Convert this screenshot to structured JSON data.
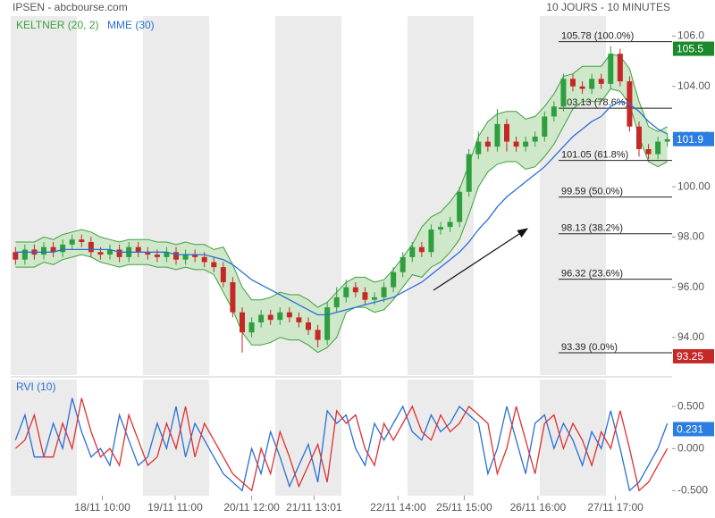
{
  "chart_data": [
    {
      "type": "candlestick",
      "title": "IPSEN - abcbourse.com",
      "subtitle": "10 JOURS - 10 MINUTES",
      "xlim": [
        0,
        70
      ],
      "ylim": [
        92.5,
        106.8
      ],
      "yticks": [
        {
          "value": 94,
          "label": "94.00"
        },
        {
          "value": 96,
          "label": "96.00"
        },
        {
          "value": 98,
          "label": "98.00"
        },
        {
          "value": 100,
          "label": "100.00"
        },
        {
          "value": 102,
          "label": "102.00"
        },
        {
          "value": 104,
          "label": "104.00"
        },
        {
          "value": 106,
          "label": "106.0"
        }
      ],
      "up_color": "#2e9e3e",
      "down_color": "#c62828",
      "open": [
        97.4,
        97.1,
        97.5,
        97.3,
        97.6,
        97.4,
        97.7,
        97.9,
        97.8,
        97.4,
        97.3,
        97.5,
        97.2,
        97.6,
        97.4,
        97.3,
        97.2,
        97.4,
        97.1,
        97.3,
        97.2,
        97.0,
        96.8,
        96.2,
        95.0,
        94.2,
        94.6,
        94.9,
        94.7,
        95.0,
        94.8,
        94.6,
        94.3,
        93.9,
        95.2,
        95.6,
        96.0,
        95.8,
        95.5,
        95.6,
        96.0,
        96.6,
        97.2,
        97.6,
        97.4,
        98.3,
        98.4,
        98.6,
        99.8,
        101.3,
        101.8,
        101.6,
        102.5,
        101.8,
        101.6,
        101.8,
        102.0,
        102.8,
        103.2,
        104.3,
        104.0,
        103.9,
        104.3,
        104.1,
        105.3,
        104.2,
        102.4,
        101.5,
        101.3,
        101.8
      ],
      "high": [
        97.6,
        97.7,
        97.7,
        97.8,
        97.8,
        97.9,
        98.1,
        98.1,
        98.0,
        97.6,
        97.7,
        97.7,
        97.8,
        97.8,
        97.6,
        97.5,
        97.6,
        97.6,
        97.5,
        97.5,
        97.4,
        97.2,
        97.0,
        96.4,
        95.2,
        94.8,
        95.1,
        95.1,
        95.2,
        95.2,
        95.0,
        94.8,
        94.5,
        95.4,
        96.0,
        96.3,
        96.2,
        96.0,
        95.8,
        96.2,
        96.8,
        97.4,
        97.8,
        97.8,
        98.5,
        98.6,
        98.8,
        100.0,
        101.5,
        102.2,
        102.0,
        103.1,
        102.7,
        102.0,
        102.0,
        102.2,
        103.0,
        103.4,
        104.5,
        104.5,
        104.2,
        104.5,
        104.5,
        105.6,
        105.5,
        104.4,
        102.6,
        101.7,
        102.0,
        102.1
      ],
      "low": [
        96.9,
        96.9,
        97.1,
        97.1,
        97.2,
        97.2,
        97.5,
        97.6,
        97.2,
        97.1,
        97.1,
        97.0,
        97.0,
        97.2,
        97.1,
        97.0,
        97.0,
        96.9,
        96.9,
        97.0,
        96.8,
        96.6,
        96.0,
        94.8,
        93.4,
        94.0,
        94.4,
        94.5,
        94.5,
        94.6,
        94.4,
        94.1,
        93.6,
        93.7,
        95.0,
        95.4,
        95.6,
        95.3,
        95.3,
        95.4,
        95.8,
        96.4,
        97.0,
        97.2,
        97.2,
        98.1,
        98.2,
        98.4,
        99.6,
        101.1,
        101.4,
        101.4,
        101.4,
        101.4,
        101.4,
        101.6,
        101.8,
        102.6,
        103.0,
        103.8,
        103.7,
        103.7,
        103.9,
        103.9,
        104.0,
        102.2,
        101.2,
        101.1,
        101.1,
        101.6
      ],
      "close": [
        97.1,
        97.5,
        97.3,
        97.6,
        97.4,
        97.7,
        97.9,
        97.8,
        97.4,
        97.3,
        97.5,
        97.2,
        97.6,
        97.4,
        97.3,
        97.2,
        97.4,
        97.1,
        97.3,
        97.2,
        97.0,
        96.8,
        96.2,
        95.0,
        94.2,
        94.6,
        94.9,
        94.7,
        95.0,
        94.8,
        94.6,
        94.3,
        93.9,
        95.2,
        95.6,
        96.0,
        95.8,
        95.5,
        95.6,
        96.0,
        96.6,
        97.2,
        97.6,
        97.4,
        98.3,
        98.4,
        98.6,
        99.8,
        101.3,
        101.8,
        101.6,
        102.5,
        101.8,
        101.6,
        101.8,
        102.0,
        102.8,
        103.2,
        104.3,
        104.0,
        103.9,
        104.3,
        104.1,
        105.3,
        104.2,
        102.4,
        101.5,
        101.3,
        101.8,
        101.9
      ],
      "series": [
        {
          "name": "KELTNER (20, 2)",
          "color": "#3f9f3f",
          "fill": "#cfe8c9",
          "upper": [
            97.8,
            97.8,
            97.8,
            98.0,
            97.9,
            98.1,
            98.2,
            98.3,
            98.2,
            98.0,
            97.9,
            97.8,
            97.9,
            97.9,
            97.9,
            97.8,
            97.8,
            97.7,
            97.8,
            97.7,
            97.7,
            97.5,
            97.6,
            96.9,
            96.0,
            95.5,
            95.5,
            95.6,
            95.8,
            95.7,
            95.7,
            95.5,
            95.2,
            95.4,
            95.8,
            96.2,
            96.4,
            96.4,
            96.2,
            96.3,
            96.7,
            97.2,
            97.7,
            98.4,
            98.8,
            99.0,
            99.4,
            99.9,
            100.9,
            102.0,
            102.6,
            102.9,
            103.0,
            103.0,
            102.7,
            102.8,
            103.2,
            103.7,
            104.4,
            104.5,
            104.8,
            104.8,
            104.8,
            105.3,
            105.2,
            104.7,
            103.4,
            102.4,
            102.2,
            102.4
          ],
          "lower": [
            96.8,
            96.8,
            96.8,
            97.0,
            96.9,
            97.1,
            97.2,
            97.3,
            97.2,
            97.0,
            96.9,
            96.8,
            96.9,
            96.9,
            96.9,
            96.8,
            96.8,
            96.7,
            96.8,
            96.7,
            96.7,
            96.5,
            95.8,
            95.1,
            94.2,
            93.7,
            93.7,
            93.8,
            94.0,
            93.9,
            93.9,
            93.7,
            93.4,
            93.6,
            94.0,
            95.0,
            95.2,
            95.2,
            95.0,
            95.1,
            95.5,
            96.0,
            96.5,
            96.4,
            96.8,
            97.0,
            97.4,
            97.9,
            98.9,
            100.0,
            100.6,
            100.9,
            101.0,
            101.0,
            100.7,
            100.8,
            101.2,
            101.7,
            102.4,
            103.1,
            103.4,
            103.4,
            103.4,
            103.9,
            103.8,
            103.3,
            102.0,
            101.0,
            100.8,
            101.0
          ]
        },
        {
          "name": "MME (30)",
          "color": "#2a6fd6",
          "values": [
            97.4,
            97.4,
            97.4,
            97.4,
            97.4,
            97.5,
            97.5,
            97.5,
            97.5,
            97.5,
            97.5,
            97.4,
            97.4,
            97.4,
            97.4,
            97.4,
            97.4,
            97.3,
            97.3,
            97.3,
            97.3,
            97.2,
            97.1,
            96.9,
            96.6,
            96.3,
            96.1,
            95.9,
            95.7,
            95.5,
            95.3,
            95.1,
            94.9,
            94.9,
            95.0,
            95.1,
            95.2,
            95.3,
            95.4,
            95.5,
            95.6,
            95.8,
            96.0,
            96.2,
            96.5,
            96.8,
            97.1,
            97.4,
            97.8,
            98.3,
            98.7,
            99.2,
            99.6,
            99.9,
            100.2,
            100.5,
            100.8,
            101.2,
            101.6,
            102.0,
            102.3,
            102.6,
            102.8,
            103.2,
            103.4,
            103.3,
            103.0,
            102.6,
            102.3,
            102.1
          ]
        }
      ],
      "fib_levels": [
        {
          "value": 105.78,
          "label": "105.78 (100.0%)"
        },
        {
          "value": 103.13,
          "label": "103.13 (78.6%)"
        },
        {
          "value": 101.05,
          "label": "101.05 (61.8%)"
        },
        {
          "value": 99.59,
          "label": "99.59 (50.0%)"
        },
        {
          "value": 98.13,
          "label": "98.13 (38.2%)"
        },
        {
          "value": 96.32,
          "label": "96.32 (23.6%)"
        },
        {
          "value": 93.39,
          "label": "93.39 (0.0%)"
        }
      ],
      "price_tags": [
        {
          "value": 105.5,
          "color": "#1b8a2a"
        },
        {
          "value": 101.9,
          "color": "#2a7de1"
        },
        {
          "value": 93.25,
          "color": "#c62828"
        }
      ]
    },
    {
      "type": "line",
      "title": "RVI (10)",
      "xlim": [
        0,
        70
      ],
      "ylim": [
        -0.56,
        0.82
      ],
      "yticks": [
        {
          "value": -0.5,
          "label": "-0.500"
        },
        {
          "value": 0,
          "label": "0.000"
        },
        {
          "value": 0.5,
          "label": "0.500"
        }
      ],
      "xticks": [
        {
          "value": 9.7,
          "label": "18/11 10:00"
        },
        {
          "value": 17.4,
          "label": "19/11 11:00"
        },
        {
          "value": 25.5,
          "label": "20/11 12:00"
        },
        {
          "value": 32.1,
          "label": "21/11 13:01"
        },
        {
          "value": 41,
          "label": "22/11 14:00"
        },
        {
          "value": 48,
          "label": "25/11 15:00"
        },
        {
          "value": 55.8,
          "label": "26/11 16:00"
        },
        {
          "value": 64,
          "label": "27/11 17:00"
        }
      ],
      "series": [
        {
          "color": "#2a6fd6",
          "values": [
            0.1,
            0.4,
            -0.1,
            -0.1,
            0.3,
            0.0,
            0.6,
            0.2,
            -0.1,
            0.0,
            -0.2,
            0.4,
            0.1,
            -0.2,
            -0.1,
            0.3,
            0.0,
            0.5,
            -0.1,
            0.3,
            0.1,
            -0.1,
            -0.3,
            -0.4,
            -0.5,
            0.0,
            -0.3,
            0.2,
            -0.1,
            -0.45,
            -0.2,
            0.05,
            -0.4,
            0.45,
            0.3,
            0.4,
            0.0,
            -0.2,
            0.3,
            0.1,
            0.3,
            0.5,
            0.2,
            0.1,
            0.4,
            0.2,
            0.3,
            0.5,
            0.4,
            0.3,
            -0.3,
            0.0,
            0.5,
            0.1,
            -0.3,
            0.3,
            0.4,
            0.0,
            0.3,
            0.1,
            -0.2,
            0.2,
            0.0,
            0.45,
            0.0,
            -0.5,
            -0.4,
            -0.2,
            0.0,
            0.3
          ]
        },
        {
          "color": "#e03030",
          "values": [
            0.0,
            0.1,
            0.4,
            -0.1,
            -0.1,
            0.3,
            0.0,
            0.6,
            0.2,
            -0.1,
            0.0,
            -0.2,
            0.4,
            0.1,
            -0.2,
            -0.1,
            0.3,
            0.0,
            0.5,
            -0.1,
            0.3,
            0.1,
            -0.1,
            -0.3,
            -0.4,
            -0.5,
            0.0,
            -0.3,
            0.2,
            -0.1,
            -0.45,
            -0.2,
            0.05,
            -0.4,
            0.45,
            0.3,
            0.4,
            0.0,
            -0.2,
            0.3,
            0.1,
            0.3,
            0.5,
            0.2,
            0.1,
            0.4,
            0.2,
            0.3,
            0.5,
            0.4,
            0.3,
            -0.3,
            0.0,
            0.5,
            0.1,
            -0.3,
            0.3,
            0.4,
            0.0,
            0.3,
            0.1,
            -0.2,
            0.2,
            0.0,
            0.45,
            0.0,
            -0.5,
            -0.4,
            -0.2,
            0.0
          ]
        }
      ],
      "price_tags": [
        {
          "value": 0.231,
          "color": "#2a7de1"
        }
      ]
    }
  ]
}
